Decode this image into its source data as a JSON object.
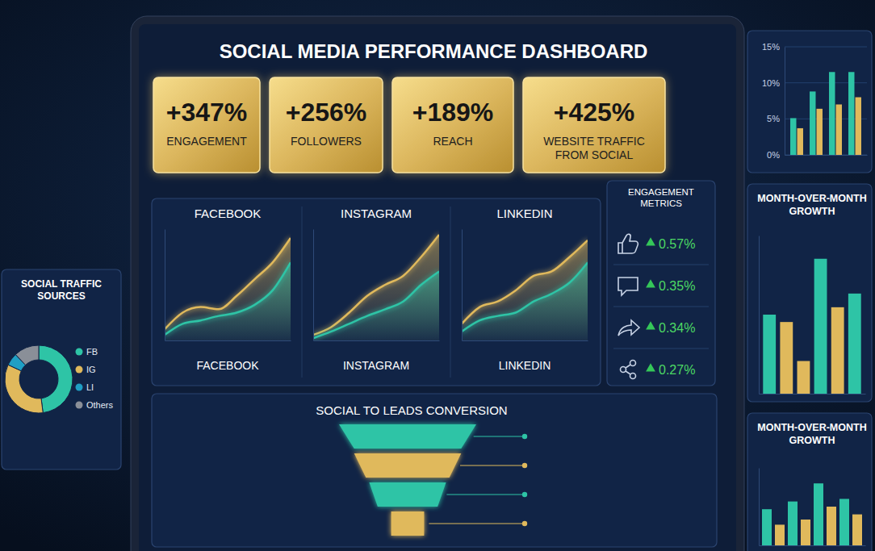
{
  "title": "SOCIAL MEDIA PERFORMANCE DASHBOARD",
  "kpis": [
    {
      "value": "+347%",
      "label": "ENGAGEMENT"
    },
    {
      "value": "+256%",
      "label": "FOLLOWERS"
    },
    {
      "value": "+189%",
      "label": "REACH"
    },
    {
      "value": "+425%",
      "label": "WEBSITE TRAFFIC FROM SOCIAL"
    }
  ],
  "engagement_metrics": {
    "title": "ENGAGEMENT METRICS",
    "values": [
      "0.57%",
      "0.35%",
      "0.34%",
      "0.27%"
    ]
  },
  "chart_data": [
    {
      "type": "pie",
      "title": "SOCIAL TRAFFIC SOURCES",
      "categories": [
        "FB",
        "IG",
        "LI",
        "Others"
      ],
      "values": [
        48,
        34,
        6,
        12
      ],
      "colors": [
        "#2ec4a6",
        "#e0b95c",
        "#1f9fc4",
        "#8a8f98"
      ],
      "legend": "right"
    },
    {
      "type": "area",
      "title": "FACEBOOK",
      "xlabel": "FACEBOOK",
      "x": [
        1,
        2,
        3,
        4,
        5,
        6,
        7,
        8
      ],
      "xlim": [
        1,
        8
      ],
      "ylim": [
        0,
        100
      ],
      "tick_labels": false,
      "series": [
        {
          "color": "#e0b95c",
          "values": [
            10,
            25,
            30,
            28,
            40,
            55,
            70,
            92
          ]
        },
        {
          "color": "#2ec4a6",
          "values": [
            5,
            15,
            18,
            22,
            25,
            32,
            45,
            70
          ]
        }
      ]
    },
    {
      "type": "area",
      "title": "INSTAGRAM",
      "xlabel": "INSTAGRAM",
      "x": [
        1,
        2,
        3,
        4,
        5,
        6,
        7,
        8
      ],
      "xlim": [
        1,
        8
      ],
      "ylim": [
        0,
        100
      ],
      "tick_labels": false,
      "series": [
        {
          "color": "#e0b95c",
          "values": [
            5,
            12,
            25,
            40,
            50,
            58,
            75,
            95
          ]
        },
        {
          "color": "#2ec4a6",
          "values": [
            2,
            8,
            15,
            22,
            28,
            35,
            50,
            62
          ]
        }
      ]
    },
    {
      "type": "area",
      "title": "LINKEDIN",
      "xlabel": "LINKEDIN",
      "x": [
        1,
        2,
        3,
        4,
        5,
        6,
        7,
        8
      ],
      "xlim": [
        1,
        8
      ],
      "ylim": [
        0,
        100
      ],
      "tick_labels": false,
      "series": [
        {
          "color": "#e0b95c",
          "values": [
            15,
            30,
            35,
            45,
            58,
            62,
            75,
            90
          ]
        },
        {
          "color": "#2ec4a6",
          "values": [
            8,
            18,
            22,
            25,
            35,
            42,
            52,
            70
          ]
        }
      ]
    },
    {
      "type": "funnel",
      "title": "SOCIAL TO LEADS CONVERSION",
      "values": [
        100,
        78,
        56,
        24
      ],
      "colors": [
        "#2ec4a6",
        "#e0b95c",
        "#2ec4a6",
        "#e0b95c"
      ]
    },
    {
      "type": "bar",
      "categories": [
        null,
        null,
        null,
        null
      ],
      "ylim": [
        0,
        15
      ],
      "yticks": [
        {
          "value": 0,
          "label": "0%"
        },
        {
          "value": 5,
          "label": "5%"
        },
        {
          "value": 10,
          "label": "10%"
        },
        {
          "value": 15,
          "label": "15%"
        }
      ],
      "grid": true,
      "tick_labels": "y",
      "series": [
        {
          "color": "#2ec4a6",
          "values": [
            5.1,
            8.8,
            11.5,
            11.5
          ]
        },
        {
          "color": "#e0b95c",
          "values": [
            3.7,
            6.4,
            7,
            8
          ]
        }
      ]
    },
    {
      "type": "bar",
      "title": "MONTH-OVER-MONTH GROWTH",
      "categories": [
        null,
        null,
        null,
        null,
        null,
        null
      ],
      "values": [
        75,
        68,
        31,
        128,
        82,
        95
      ],
      "colors": [
        "#2ec4a6",
        "#e0b95c",
        "#e0b95c",
        "#2ec4a6",
        "#e0b95c",
        "#2ec4a6"
      ],
      "ylim": [
        0,
        150
      ],
      "tick_labels": false
    },
    {
      "type": "bar",
      "title": "MONTH-OVER-MONTH GROWTH",
      "categories": [
        null,
        null,
        null,
        null,
        null,
        null,
        null,
        null
      ],
      "values": [
        70,
        40,
        85,
        50,
        120,
        75,
        90,
        60
      ],
      "colors": [
        "#2ec4a6",
        "#e0b95c",
        "#2ec4a6",
        "#e0b95c",
        "#2ec4a6",
        "#e0b95c",
        "#2ec4a6",
        "#e0b95c"
      ],
      "ylim": [
        0,
        150
      ],
      "tick_labels": false
    }
  ]
}
